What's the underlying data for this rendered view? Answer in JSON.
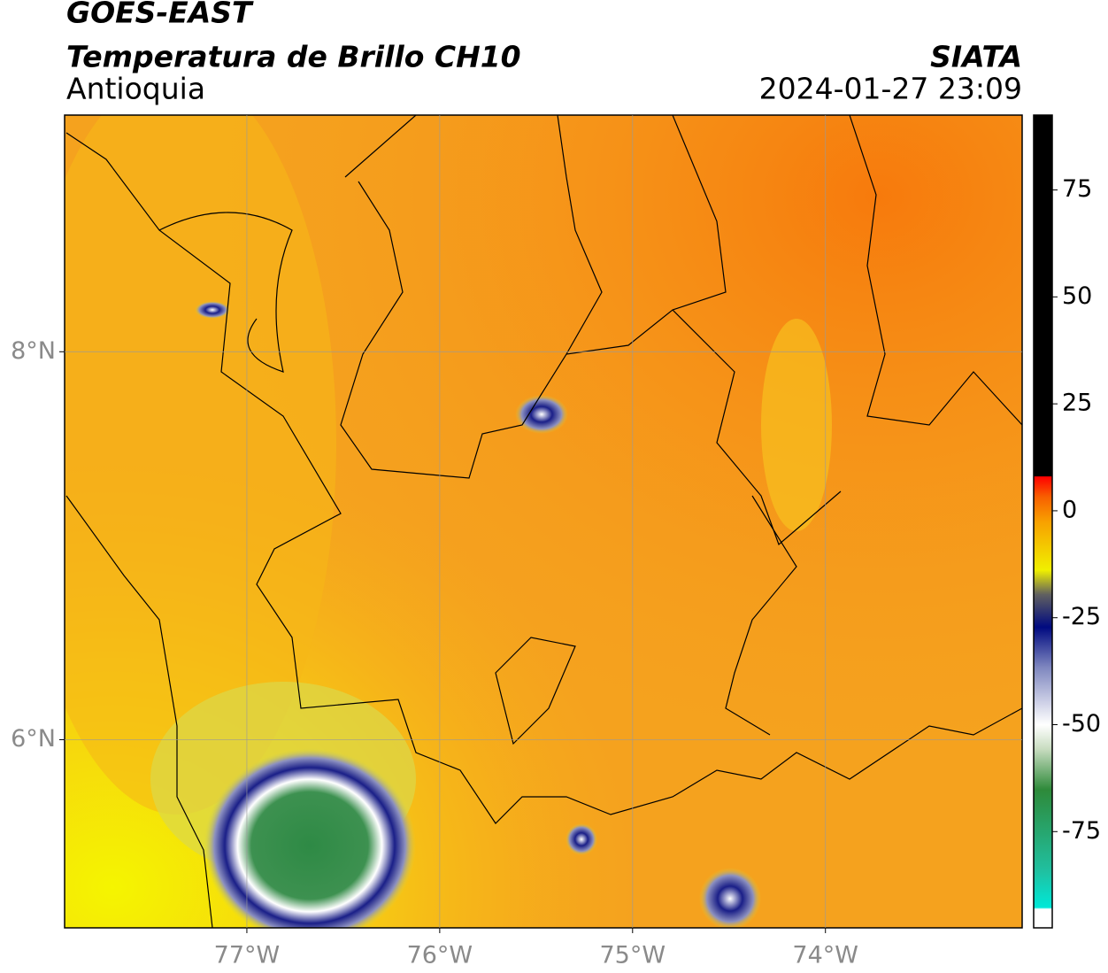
{
  "header": {
    "satellite": "GOES-EAST",
    "product": "Temperatura de Brillo CH10",
    "region": "Antioquia",
    "agency": "SIATA",
    "timestamp": "2024-01-27 23:09"
  },
  "map": {
    "lonlim": [
      -77.945,
      -72.98
    ],
    "latlim": [
      5.03,
      9.22
    ],
    "lonticks": [
      {
        "value": -77,
        "label": "77°W"
      },
      {
        "value": -76,
        "label": "76°W"
      },
      {
        "value": -75,
        "label": "75°W"
      },
      {
        "value": -74,
        "label": "74°W"
      }
    ],
    "latticks": [
      {
        "value": 8,
        "label": "8°N"
      },
      {
        "value": 6,
        "label": "6°N"
      }
    ],
    "grid": true
  },
  "colorbar": {
    "lim": [
      -97.5,
      92.5
    ],
    "ticks": [
      75,
      50,
      25,
      0,
      -25,
      -50,
      -75
    ]
  }
}
